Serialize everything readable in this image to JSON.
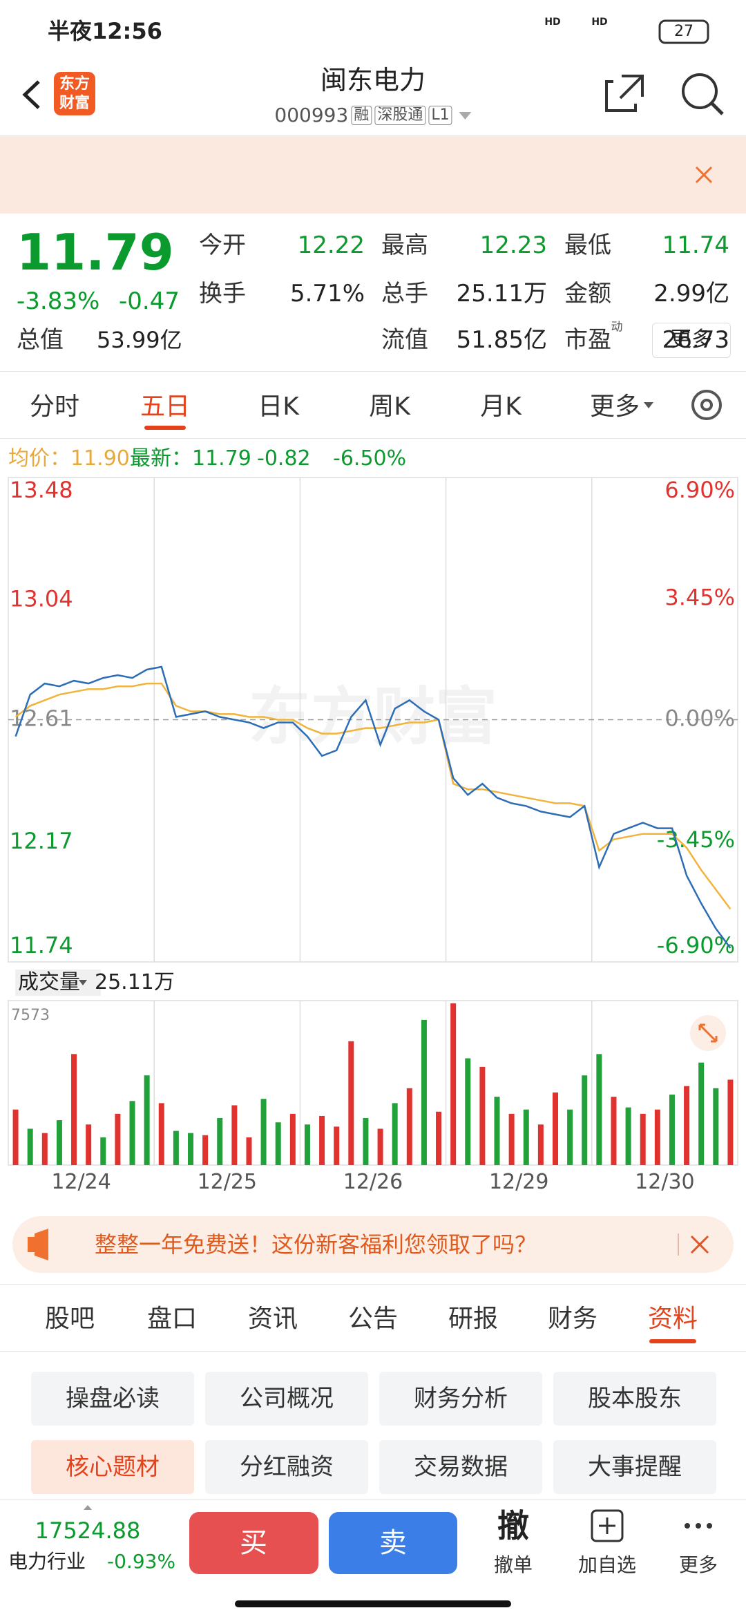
{
  "status_bar": {
    "time": "半夜12:56",
    "network": [
      "HD",
      "HD"
    ],
    "battery": "27"
  },
  "header": {
    "logo": [
      "东方",
      "财富"
    ],
    "title": "闽东电力",
    "code": "000993",
    "tags": [
      "融",
      "深股通",
      "L1"
    ]
  },
  "quote": {
    "price": "11.79",
    "change_pct": "-3.83%",
    "change": "-0.47",
    "fields": [
      {
        "label": "今开",
        "value": "12.22",
        "color": "#0b9a2d"
      },
      {
        "label": "最高",
        "value": "12.23",
        "color": "#0b9a2d"
      },
      {
        "label": "最低",
        "value": "11.74",
        "color": "#0b9a2d"
      },
      {
        "label": "换手",
        "value": "5.71%",
        "color": "#222222"
      },
      {
        "label": "总手",
        "value": "25.11万",
        "color": "#222222"
      },
      {
        "label": "金额",
        "value": "2.99亿",
        "color": "#222222"
      },
      {
        "label": "总值",
        "value": "53.99亿",
        "color": "#222222"
      },
      {
        "label": "流值",
        "value": "51.85亿",
        "color": "#222222"
      },
      {
        "label": "市盈",
        "sup": "动",
        "value": "26.73",
        "color": "#222222"
      }
    ],
    "more": "更多"
  },
  "tabs": {
    "items": [
      "分时",
      "五日",
      "日K",
      "周K",
      "月K",
      "更多"
    ],
    "active": 1
  },
  "chart_info": {
    "avg": "均价：11.90",
    "latest": "最新：11.79",
    "change": "-0.82",
    "change_pct": "-6.50%"
  },
  "chart_data": [
    {
      "type": "line",
      "watermark": "东方财富",
      "ylim": [
        11.74,
        13.48
      ],
      "yticks": [
        13.48,
        13.04,
        12.61,
        12.17,
        11.74
      ],
      "y2lim": [
        -6.9,
        6.9
      ],
      "y2ticks": [
        {
          "value": 6.9,
          "label": "6.90%"
        },
        {
          "value": 3.45,
          "label": "3.45%"
        },
        {
          "value": 0,
          "label": "0.00%"
        },
        {
          "value": -3.45,
          "label": "-3.45%"
        },
        {
          "value": -6.9,
          "label": "-6.90%"
        }
      ],
      "dashed_ytick": 2,
      "xgrid": true,
      "series": [
        {
          "color": "#2d6db5",
          "values": [
            [
              12.55,
              12.7,
              12.74,
              12.73,
              12.75,
              12.74,
              12.76,
              12.77,
              12.76,
              12.79
            ],
            [
              12.8,
              12.62,
              12.63,
              12.64,
              12.62,
              12.61,
              12.6,
              12.58,
              12.6,
              12.6
            ],
            [
              12.55,
              12.48,
              12.5,
              12.62,
              12.68,
              12.52,
              12.65,
              12.68,
              12.64,
              12.61
            ],
            [
              12.4,
              12.34,
              12.38,
              12.33,
              12.31,
              12.3,
              12.28,
              12.27,
              12.26,
              12.3
            ],
            [
              12.08,
              12.2,
              12.22,
              12.24,
              12.22,
              12.22,
              12.05,
              11.95,
              11.86,
              11.79
            ]
          ]
        },
        {
          "color": "#f0b33c",
          "values": [
            [
              12.62,
              12.66,
              12.68,
              12.7,
              12.71,
              12.72,
              12.72,
              12.73,
              12.73,
              12.74
            ],
            [
              12.74,
              12.66,
              12.64,
              12.64,
              12.63,
              12.63,
              12.62,
              12.62,
              12.61,
              12.61
            ],
            [
              12.58,
              12.56,
              12.56,
              12.57,
              12.58,
              12.58,
              12.59,
              12.6,
              12.6,
              12.61
            ],
            [
              12.38,
              12.36,
              12.36,
              12.35,
              12.34,
              12.33,
              12.32,
              12.31,
              12.31,
              12.3
            ],
            [
              12.14,
              12.18,
              12.19,
              12.2,
              12.2,
              12.2,
              12.15,
              12.07,
              12.0,
              11.93
            ]
          ]
        }
      ]
    },
    {
      "type": "bar",
      "title": "成交量",
      "subtitle": "25.11万",
      "categories": [
        "12/24",
        "12/25",
        "12/26",
        "12/29",
        "12/30"
      ],
      "ylim": [
        0,
        7573
      ],
      "yticks": [
        7573
      ],
      "up_color": "#e0332f",
      "down_color": "#22a03a",
      "values": [
        [
          2600,
          1700,
          1500,
          2100,
          5200,
          1900,
          1300,
          2400,
          3000,
          4200
        ],
        [
          2900,
          1600,
          1500,
          1400,
          2200,
          2800,
          1300,
          3100,
          2000,
          2400
        ],
        [
          1900,
          2300,
          1800,
          5800,
          2200,
          1700,
          2900,
          3600,
          6800,
          2500
        ],
        [
          7573,
          5000,
          4600,
          3200,
          2400,
          2600,
          1900,
          3400,
          2600,
          4200
        ],
        [
          5200,
          3200,
          2700,
          2400,
          2600,
          3300,
          3700,
          4800,
          3600,
          4000
        ]
      ],
      "up": [
        [
          true,
          false,
          true,
          false,
          true,
          true,
          false,
          true,
          false,
          false
        ],
        [
          true,
          false,
          false,
          true,
          false,
          true,
          true,
          false,
          false,
          true
        ],
        [
          false,
          true,
          true,
          true,
          false,
          true,
          false,
          true,
          false,
          true
        ],
        [
          true,
          false,
          true,
          false,
          true,
          false,
          true,
          true,
          false,
          false
        ],
        [
          false,
          true,
          false,
          true,
          true,
          false,
          true,
          false,
          false,
          true
        ]
      ]
    }
  ],
  "banner": {
    "text": "整整一年免费送！这份新客福利您领取了吗？"
  },
  "info_tabs": {
    "items": [
      "股吧",
      "盘口",
      "资讯",
      "公告",
      "研报",
      "财务",
      "资料"
    ],
    "active": 6
  },
  "shortcuts": {
    "items": [
      "操盘必读",
      "公司概况",
      "财务分析",
      "股本股东",
      "核心题材",
      "分红融资",
      "交易数据",
      "大事提醒"
    ],
    "active": 4
  },
  "bottom_bar": {
    "index_value": "17524.88",
    "index_name": "电力行业",
    "index_change": "-0.93%",
    "buy": "买",
    "sell": "卖",
    "actions": [
      {
        "icon": "撤",
        "label": "撤单"
      },
      {
        "label": "加自选"
      },
      {
        "label": "更多"
      }
    ]
  }
}
